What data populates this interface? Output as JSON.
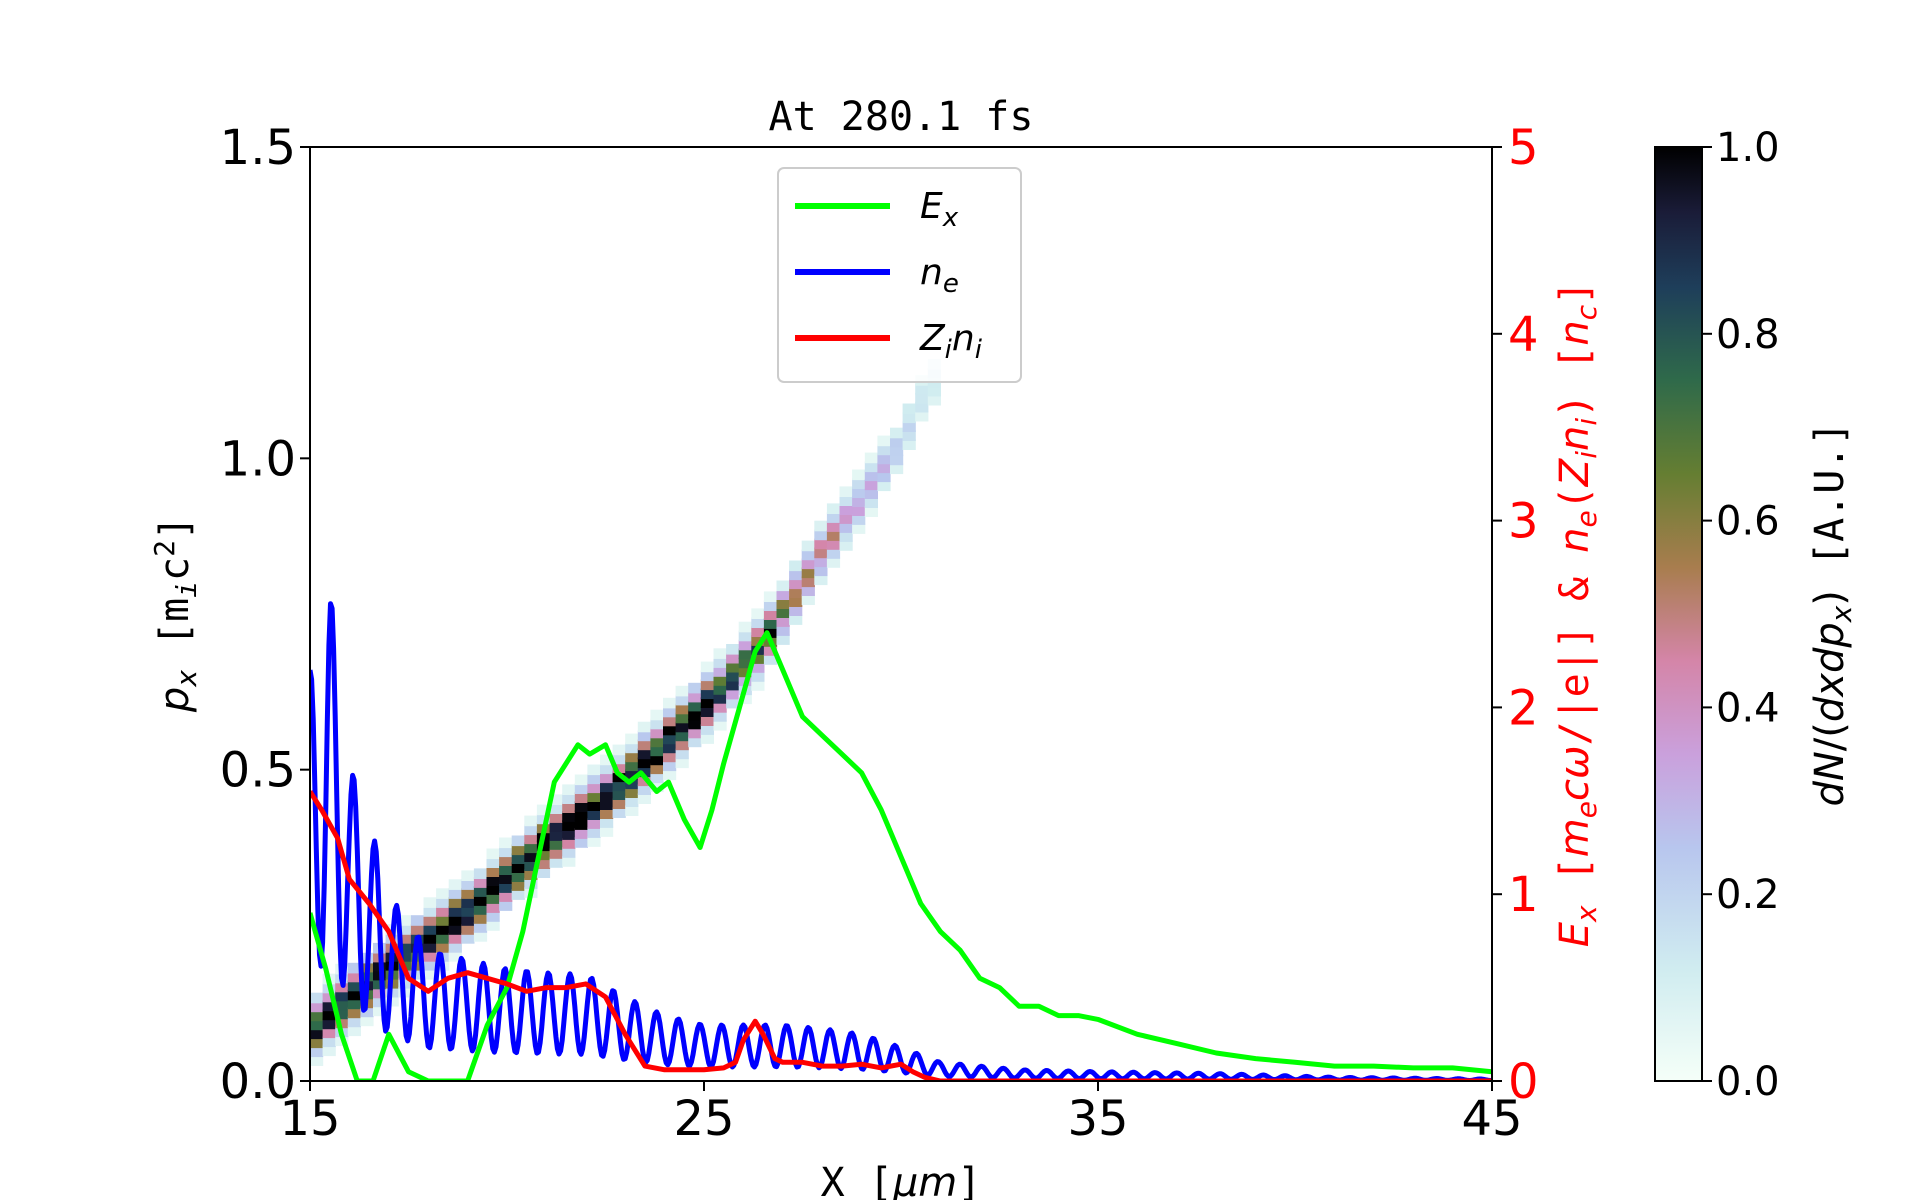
{
  "chart_data": {
    "type": "heatmap",
    "title": "At 280.1 fs",
    "xlabel": "X [μm]",
    "ylabel": "p_x [m_i c^2]",
    "y2label": "E_x [m_e c ω/|e|] & n_e(Z_i n_i) [n_c]",
    "colorbar_label": "dN/(dx dp_x) [A.U.]",
    "xlim": [
      15,
      45
    ],
    "ylim": [
      0,
      1.5
    ],
    "y2lim": [
      0,
      5
    ],
    "clim": [
      0,
      1
    ],
    "x_ticks": [
      "15",
      "25",
      "35",
      "45"
    ],
    "y_ticks": [
      "0.0",
      "0.5",
      "1.0",
      "1.5"
    ],
    "y2_ticks": [
      "0",
      "1",
      "2",
      "3",
      "4",
      "5"
    ],
    "colorbar_ticks": [
      "0.0",
      "0.2",
      "0.4",
      "0.6",
      "0.8",
      "1.0"
    ],
    "legend_position": "top-center",
    "colors": {
      "Ex": "#00ff00",
      "ne": "#0000ff",
      "Zini": "#ff0000",
      "right_axis": "#ff0000"
    },
    "heatmap": {
      "description": "ion phase space density along a diagonal band",
      "ridge_px": [
        [
          15.0,
          0.08
        ],
        [
          17.0,
          0.18
        ],
        [
          19.0,
          0.27
        ],
        [
          21.0,
          0.38
        ],
        [
          23.0,
          0.48
        ],
        [
          25.0,
          0.6
        ],
        [
          26.5,
          0.7
        ],
        [
          28.0,
          0.85
        ],
        [
          30.0,
          1.02
        ],
        [
          30.7,
          1.12
        ]
      ]
    },
    "series": [
      {
        "name": "E_x",
        "axis": "right",
        "x": [
          15.0,
          15.4,
          15.8,
          16.2,
          16.6,
          17.0,
          17.5,
          18.0,
          18.5,
          19.0,
          19.5,
          20.0,
          20.4,
          20.8,
          21.2,
          21.5,
          21.8,
          22.1,
          22.5,
          22.8,
          23.1,
          23.4,
          23.8,
          24.1,
          24.5,
          24.9,
          25.2,
          25.5,
          25.9,
          26.3,
          26.6,
          27.0,
          27.5,
          28.0,
          28.5,
          29.0,
          29.5,
          30.0,
          30.5,
          31.0,
          31.5,
          32.0,
          32.5,
          33.0,
          33.5,
          34.0,
          34.5,
          35.0,
          36.0,
          37.0,
          38.0,
          39.0,
          40.0,
          41.0,
          42.0,
          43.0,
          44.0,
          45.0
        ],
        "y": [
          0.9,
          0.6,
          0.25,
          0.0,
          0.0,
          0.25,
          0.05,
          0.0,
          0.0,
          0.0,
          0.3,
          0.5,
          0.8,
          1.2,
          1.6,
          1.7,
          1.8,
          1.75,
          1.8,
          1.65,
          1.6,
          1.65,
          1.55,
          1.6,
          1.4,
          1.25,
          1.45,
          1.7,
          2.0,
          2.3,
          2.4,
          2.2,
          1.95,
          1.85,
          1.75,
          1.65,
          1.45,
          1.2,
          0.95,
          0.8,
          0.7,
          0.55,
          0.5,
          0.4,
          0.4,
          0.35,
          0.35,
          0.33,
          0.25,
          0.2,
          0.15,
          0.12,
          0.1,
          0.08,
          0.08,
          0.07,
          0.07,
          0.05
        ]
      },
      {
        "name": "n_e",
        "axis": "right",
        "envelope_x": [
          15.0,
          15.5,
          16.0,
          16.5,
          17.0,
          18.0,
          19.0,
          20.0,
          21.0,
          22.0,
          23.0,
          24.0,
          25.0,
          26.0,
          27.0,
          28.0,
          29.0,
          30.0,
          31.0,
          32.0,
          33.0,
          35.0,
          38.0,
          41.0,
          45.0
        ],
        "envelope_y": [
          2.2,
          2.65,
          1.7,
          1.4,
          1.0,
          0.7,
          0.65,
          0.6,
          0.58,
          0.57,
          0.45,
          0.35,
          0.3,
          0.3,
          0.3,
          0.28,
          0.25,
          0.18,
          0.1,
          0.08,
          0.06,
          0.05,
          0.04,
          0.02,
          0.01
        ],
        "oscillation_period_um": 0.55
      },
      {
        "name": "Z_i n_i",
        "axis": "right",
        "x": [
          15.0,
          15.3,
          15.7,
          16.0,
          16.5,
          17.0,
          17.5,
          18.0,
          18.5,
          19.0,
          19.5,
          20.0,
          20.5,
          21.0,
          21.5,
          22.0,
          22.5,
          23.0,
          23.5,
          24.0,
          24.5,
          25.0,
          25.5,
          25.8,
          26.0,
          26.3,
          26.5,
          26.8,
          27.0,
          27.5,
          28.0,
          28.5,
          29.0,
          29.5,
          30.0,
          30.3,
          30.6,
          31.0,
          35.0,
          40.0,
          45.0
        ],
        "y": [
          1.55,
          1.45,
          1.3,
          1.08,
          0.95,
          0.8,
          0.55,
          0.48,
          0.55,
          0.58,
          0.55,
          0.52,
          0.48,
          0.5,
          0.5,
          0.52,
          0.45,
          0.25,
          0.08,
          0.06,
          0.06,
          0.06,
          0.07,
          0.1,
          0.22,
          0.32,
          0.25,
          0.12,
          0.1,
          0.1,
          0.08,
          0.08,
          0.09,
          0.07,
          0.09,
          0.05,
          0.02,
          0.0,
          0.0,
          0.0,
          0.0
        ]
      }
    ]
  }
}
